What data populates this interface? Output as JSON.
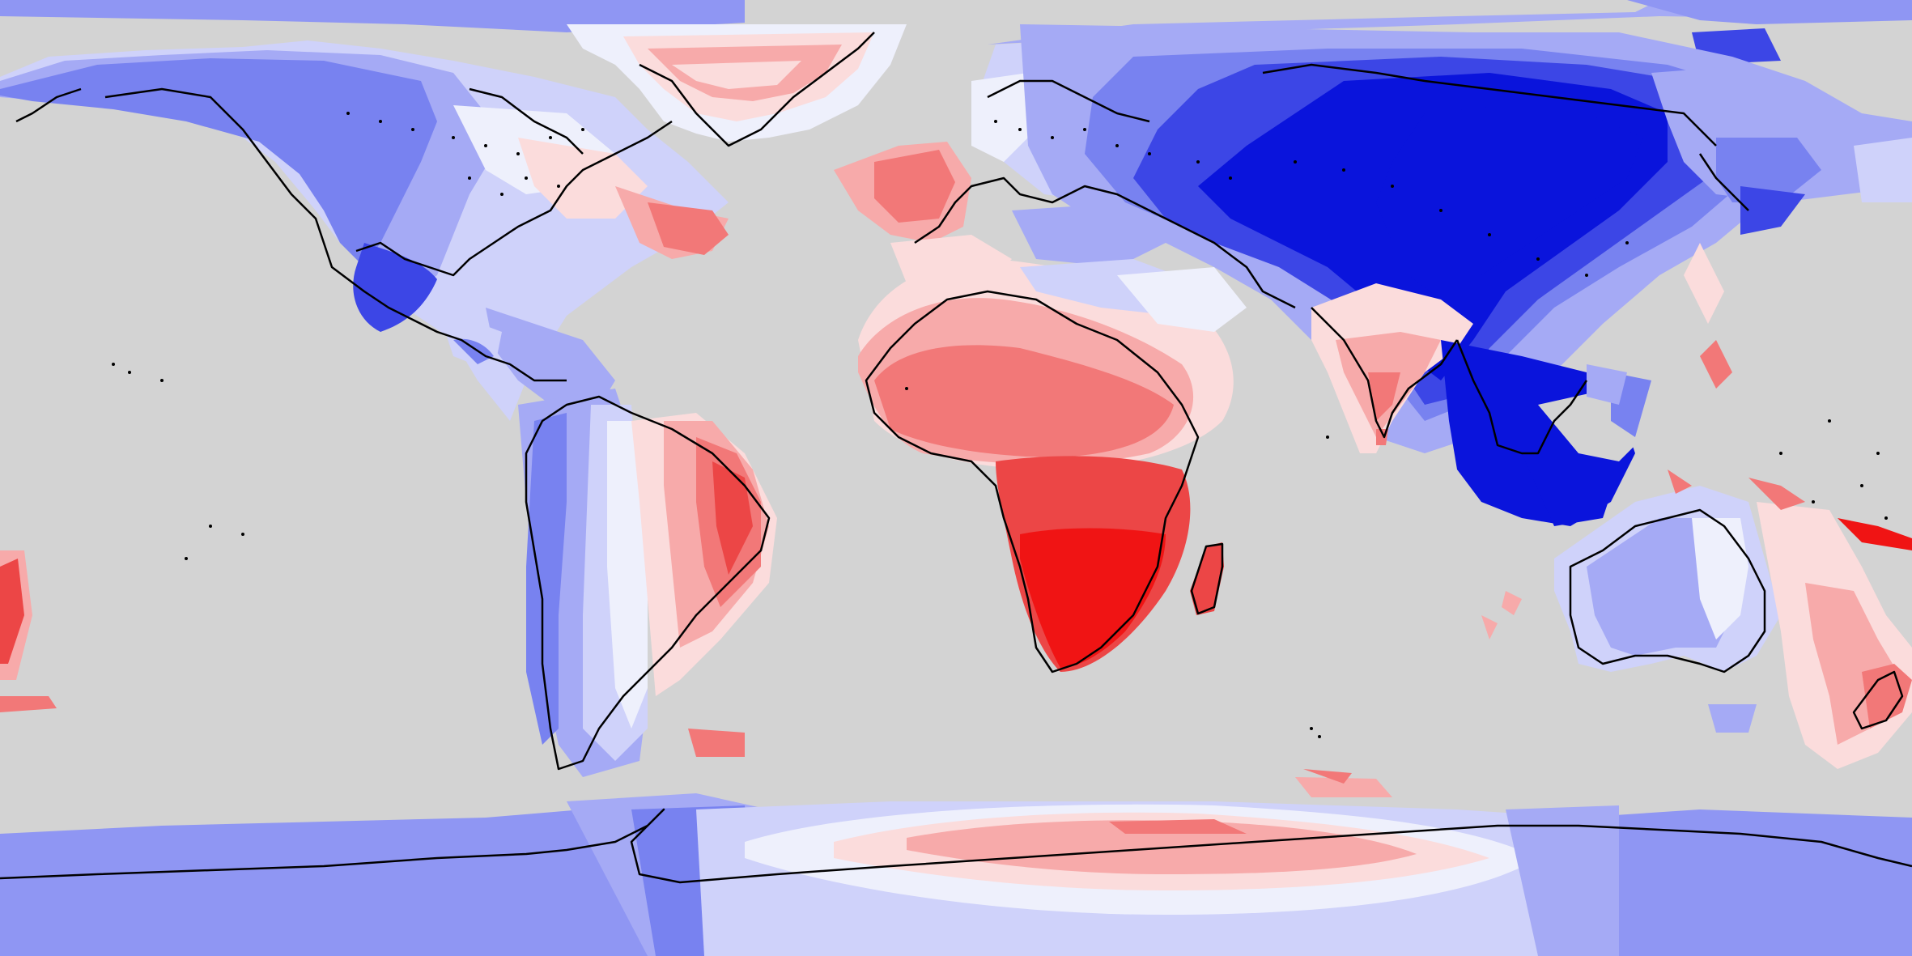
{
  "map": {
    "projection": "equirectangular",
    "background_color": "#d3d3d3",
    "coastline_color": "#000000",
    "diverging_palette": {
      "strong_blue": "#0a14dc",
      "blue_2": "#3c46e6",
      "blue_3": "#7882f0",
      "blue_4": "#a5aaf5",
      "blue_5": "#cfd2fa",
      "near_white": "#eef0fc",
      "red_1": "#fbdcdc",
      "red_2": "#f7aaaa",
      "red_3": "#f27878",
      "red_4": "#ec4646",
      "strong_red": "#f01414"
    },
    "regions": [
      {
        "name": "arctic-ocean-band",
        "value": "blue_4"
      },
      {
        "name": "north-america",
        "value": "blue_3"
      },
      {
        "name": "greenland",
        "value": "red_2"
      },
      {
        "name": "north-atlantic-patch",
        "value": "red_3"
      },
      {
        "name": "south-america-west",
        "value": "blue_3"
      },
      {
        "name": "south-america-east",
        "value": "red_3"
      },
      {
        "name": "north-africa",
        "value": "red_2"
      },
      {
        "name": "southern-africa",
        "value": "strong_red"
      },
      {
        "name": "madagascar",
        "value": "red_4"
      },
      {
        "name": "europe",
        "value": "blue_4"
      },
      {
        "name": "central-asia",
        "value": "strong_blue"
      },
      {
        "name": "india",
        "value": "red_1"
      },
      {
        "name": "southeast-asia",
        "value": "strong_blue"
      },
      {
        "name": "australia",
        "value": "blue_4"
      },
      {
        "name": "new-zealand",
        "value": "red_2"
      },
      {
        "name": "antarctica-west",
        "value": "blue_3"
      },
      {
        "name": "antarctica-central",
        "value": "red_2"
      },
      {
        "name": "antarctica-east",
        "value": "blue_3"
      }
    ]
  }
}
